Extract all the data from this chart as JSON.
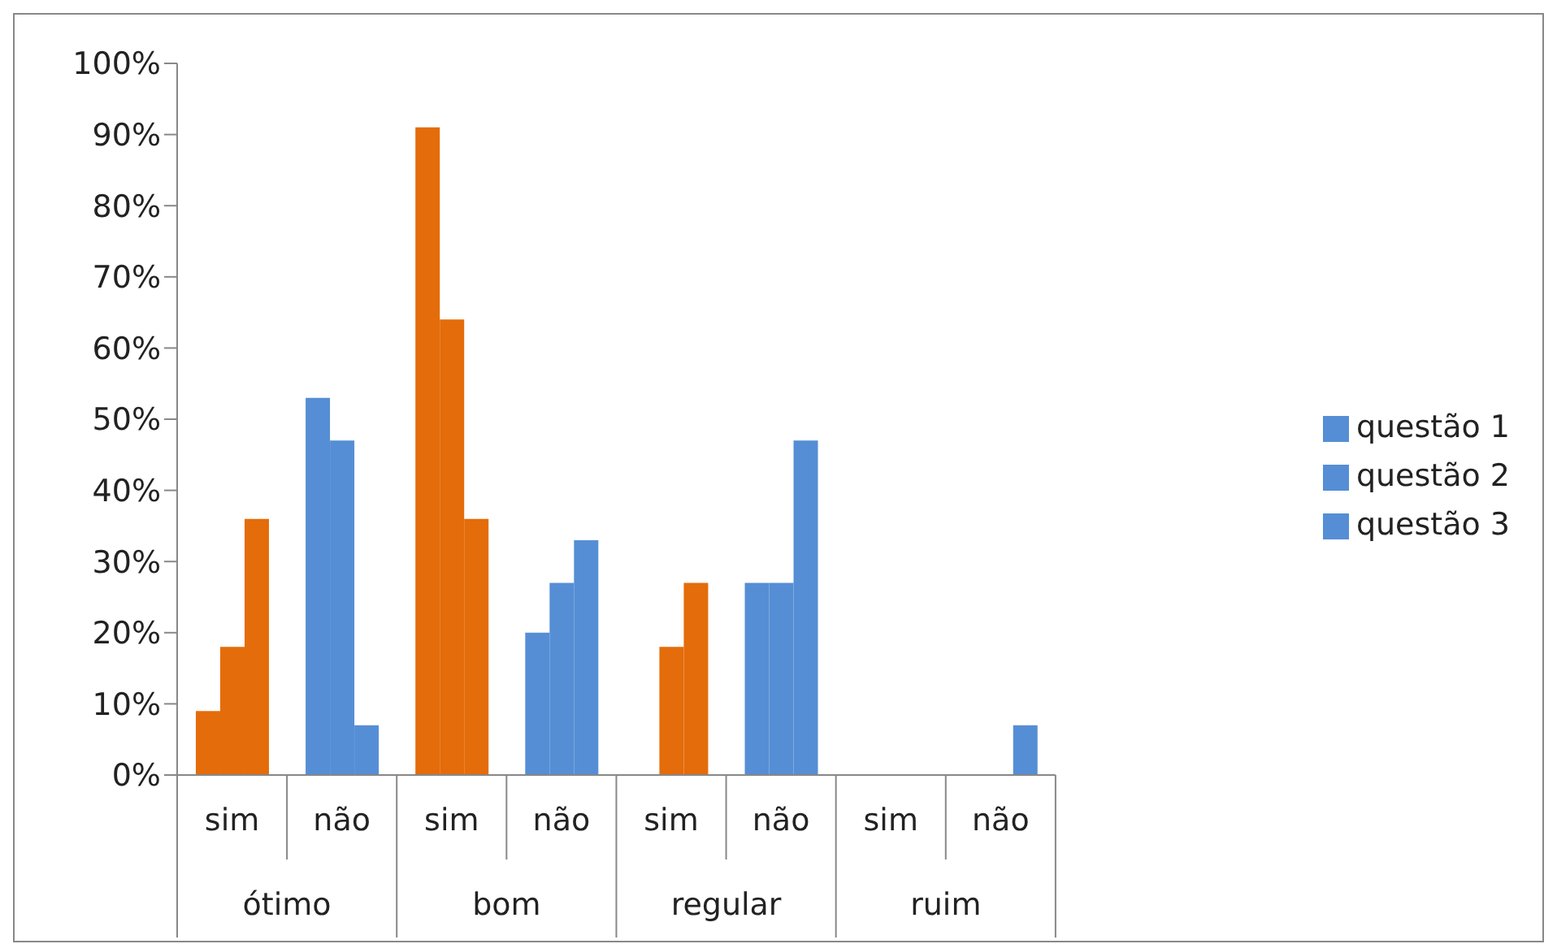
{
  "chart_data": {
    "type": "bar",
    "categories": [
      "sim",
      "não",
      "sim",
      "não",
      "sim",
      "não",
      "sim",
      "não"
    ],
    "annotations": [
      "ótimo",
      "bom",
      "regular",
      "ruim"
    ],
    "series": [
      {
        "name": "questão 1",
        "color": "#558ed5",
        "colors": [
          "#e46c0a",
          "#558ed5",
          "#e46c0a",
          "#558ed5",
          "#e46c0a",
          "#558ed5",
          "#e46c0a",
          "#558ed5"
        ],
        "values": [
          9,
          53,
          91,
          20,
          0,
          27,
          0,
          0
        ]
      },
      {
        "name": "questão 2",
        "color": "#558ed5",
        "colors": [
          "#e46c0a",
          "#558ed5",
          "#e46c0a",
          "#558ed5",
          "#e46c0a",
          "#558ed5",
          "#e46c0a",
          "#558ed5"
        ],
        "values": [
          18,
          47,
          64,
          27,
          18,
          27,
          0,
          0
        ]
      },
      {
        "name": "questão 3",
        "color": "#558ed5",
        "colors": [
          "#e46c0a",
          "#558ed5",
          "#e46c0a",
          "#558ed5",
          "#e46c0a",
          "#558ed5",
          "#e46c0a",
          "#558ed5"
        ],
        "values": [
          36,
          7,
          36,
          33,
          27,
          47,
          0,
          7
        ]
      }
    ],
    "ylim": [
      0,
      100
    ],
    "yticks": [
      {
        "value": 0,
        "label": "0%"
      },
      {
        "value": 10,
        "label": "10%"
      },
      {
        "value": 20,
        "label": "20%"
      },
      {
        "value": 30,
        "label": "30%"
      },
      {
        "value": 40,
        "label": "40%"
      },
      {
        "value": 50,
        "label": "50%"
      },
      {
        "value": 60,
        "label": "60%"
      },
      {
        "value": 70,
        "label": "70%"
      },
      {
        "value": 80,
        "label": "80%"
      },
      {
        "value": 90,
        "label": "90%"
      },
      {
        "value": 100,
        "label": "100%"
      }
    ],
    "grid": false,
    "legend": "right"
  }
}
